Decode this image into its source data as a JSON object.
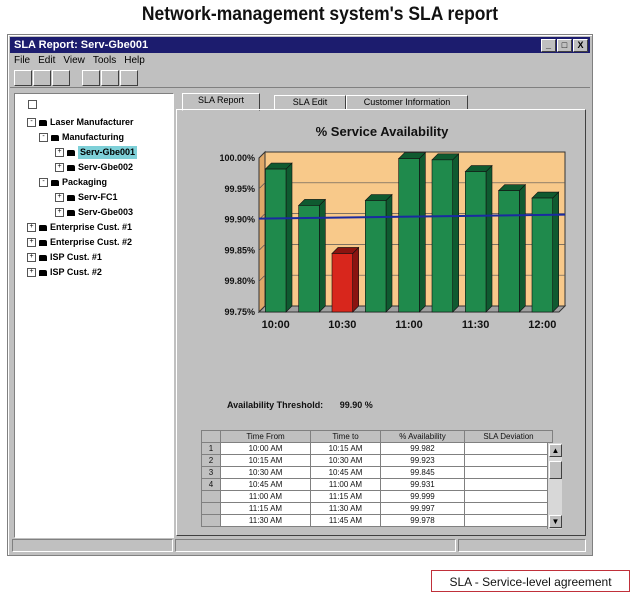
{
  "page_heading": "Network-management system's SLA report",
  "window": {
    "title": "SLA Report: Serv-Gbe001",
    "controls": [
      "_",
      "□",
      "X"
    ]
  },
  "menu": [
    "File",
    "Edit",
    "View",
    "Tools",
    "Help"
  ],
  "tree": [
    {
      "label": "Laser Manufacturer",
      "level": 1,
      "expander": "-"
    },
    {
      "label": "Manufacturing",
      "level": 2,
      "expander": "-"
    },
    {
      "label": "Serv-Gbe001",
      "level": 3,
      "expander": "+",
      "selected": true
    },
    {
      "label": "Serv-Gbe002",
      "level": 3,
      "expander": "+"
    },
    {
      "label": "Packaging",
      "level": 2,
      "expander": "-"
    },
    {
      "label": "Serv-FC1",
      "level": 3,
      "expander": "+"
    },
    {
      "label": "Serv-Gbe003",
      "level": 3,
      "expander": "+"
    },
    {
      "label": "Enterprise Cust. #1",
      "level": 0,
      "expander": "+"
    },
    {
      "label": "Enterprise Cust. #2",
      "level": 0,
      "expander": "+"
    },
    {
      "label": "ISP Cust. #1",
      "level": 0,
      "expander": "+"
    },
    {
      "label": "ISP Cust. #2",
      "level": 0,
      "expander": "+"
    }
  ],
  "tabs": [
    "SLA Report",
    "SLA Edit",
    "Customer Information"
  ],
  "threshold": {
    "label": "Availability Threshold:",
    "value": "99.90 %"
  },
  "chart_data": {
    "type": "bar",
    "title": "% Service Availability",
    "x_tick_labels": [
      "10:00",
      "10:30",
      "11:00",
      "11:30",
      "12:00"
    ],
    "values": [
      99.982,
      99.923,
      99.845,
      99.931,
      99.999,
      99.997,
      99.978,
      99.947,
      99.935
    ],
    "y_tick_labels": [
      "100.00%",
      "99.95%",
      "99.90%",
      "99.85%",
      "99.80%",
      "99.75%"
    ],
    "ylim": [
      99.75,
      100.0
    ],
    "threshold": 99.9,
    "colors": {
      "above": "#1f8a4c",
      "below": "#d8261c",
      "background": "#f8c98a",
      "threshold_line": "#1a2aa0"
    }
  },
  "table": {
    "headers": [
      "Time From",
      "Time to",
      "% Availability",
      "SLA Deviation"
    ],
    "rows": [
      {
        "num": "1",
        "from": "10:00 AM",
        "to": "10:15 AM",
        "avail": "99.982",
        "dev": ""
      },
      {
        "num": "2",
        "from": "10:15 AM",
        "to": "10:30 AM",
        "avail": "99.923",
        "dev": ""
      },
      {
        "num": "3",
        "from": "10:30 AM",
        "to": "10:45 AM",
        "avail": "99.845",
        "dev": ""
      },
      {
        "num": "4",
        "from": "10:45 AM",
        "to": "11:00 AM",
        "avail": "99.931",
        "dev": ""
      },
      {
        "num": "",
        "from": "11:00 AM",
        "to": "11:15 AM",
        "avail": "99.999",
        "dev": ""
      },
      {
        "num": "",
        "from": "11:15 AM",
        "to": "11:30 AM",
        "avail": "99.997",
        "dev": ""
      },
      {
        "num": "",
        "from": "11:30 AM",
        "to": "11:45 AM",
        "avail": "99.978",
        "dev": ""
      }
    ],
    "scroll_up": "▲",
    "scroll_down": "▼"
  },
  "legend_note": "SLA - Service-level agreement"
}
